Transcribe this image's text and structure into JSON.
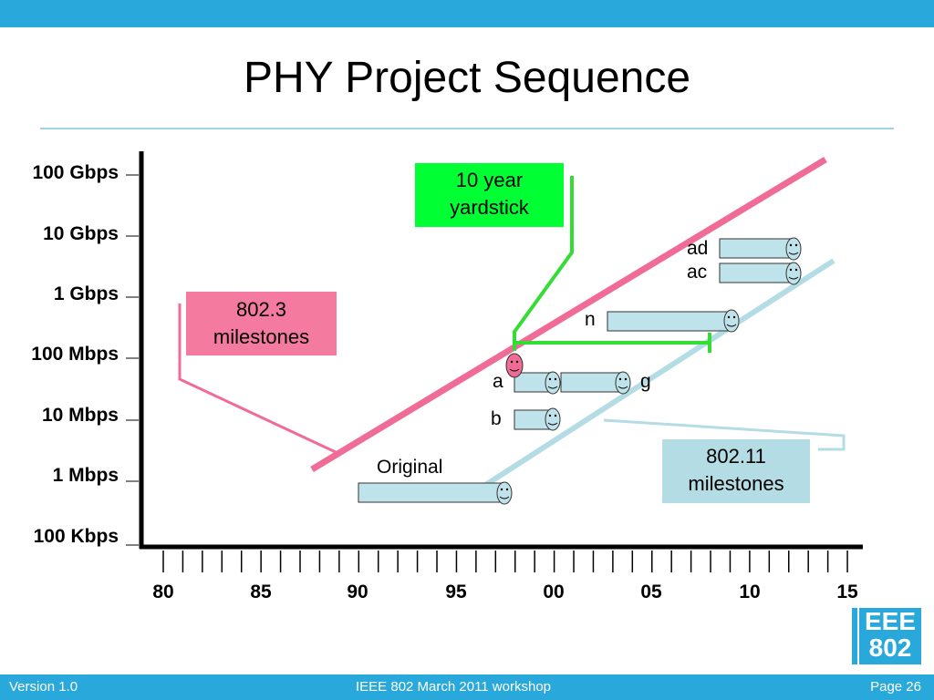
{
  "slide": {
    "title": "PHY Project Sequence",
    "footer_left": "Version 1.0",
    "footer_center": "IEEE 802 March 2011 workshop",
    "footer_right": "Page 26"
  },
  "colors": {
    "accent_blue": "#29a8dc",
    "title_rule": "#9fd3e0",
    "pink_line": "#f06c96",
    "light_blue_line": "#b4dce4",
    "green": "#00ff33",
    "pink_box": "#f47aa0",
    "blue_box": "#b4dce4",
    "bar_fill": "#bfe3ea"
  },
  "axes": {
    "y_labels": [
      "100 Gbps",
      "10 Gbps",
      "1 Gbps",
      "100 Mbps",
      "10 Mbps",
      "1 Mbps",
      "100 Kbps"
    ],
    "x_labels": [
      "80",
      "85",
      "90",
      "95",
      "00",
      "05",
      "10",
      "15"
    ]
  },
  "callouts": {
    "yardstick": "10 year yardstick",
    "ieee8023": "802.3 milestones",
    "ieee80211": "802.11 milestones"
  },
  "milestones": {
    "original": "Original",
    "a": "a",
    "g": "g",
    "b": "b",
    "n": "n",
    "ac": "ac",
    "ad": "ad"
  },
  "logo": {
    "line1": "EEE",
    "line2": "802"
  }
}
